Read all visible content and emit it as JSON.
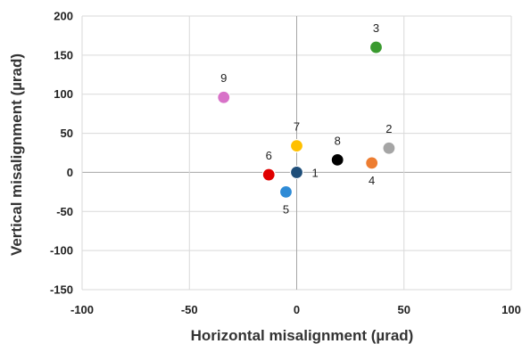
{
  "chart_data": {
    "type": "scatter",
    "xlabel": "Horizontal misalignment  (µrad)",
    "ylabel": "Vertical misalignment  (µrad)",
    "xlim": [
      -100,
      100
    ],
    "ylim": [
      -150,
      200
    ],
    "xticks": [
      -100,
      -50,
      0,
      50,
      100
    ],
    "yticks": [
      -150,
      -100,
      -50,
      0,
      50,
      100,
      150,
      200
    ],
    "xtick_labels": [
      "-100",
      "-50",
      "0",
      "50",
      "100"
    ],
    "ytick_labels": [
      "-150",
      "-100",
      "-50",
      "0",
      "50",
      "100",
      "150",
      "200"
    ],
    "grid": true,
    "points": [
      {
        "label": "1",
        "x": 0,
        "y": 0,
        "color": "#1f4e79",
        "label_pos": "right"
      },
      {
        "label": "2",
        "x": 43,
        "y": 31,
        "color": "#a5a5a5",
        "label_pos": "above"
      },
      {
        "label": "3",
        "x": 37,
        "y": 160,
        "color": "#3a9a2f",
        "label_pos": "above"
      },
      {
        "label": "4",
        "x": 35,
        "y": 12,
        "color": "#ed7d31",
        "label_pos": "below"
      },
      {
        "label": "5",
        "x": -5,
        "y": -25,
        "color": "#2e8bd6",
        "label_pos": "below"
      },
      {
        "label": "6",
        "x": -13,
        "y": -3,
        "color": "#e00000",
        "label_pos": "above"
      },
      {
        "label": "7",
        "x": 0,
        "y": 34,
        "color": "#ffc000",
        "label_pos": "above"
      },
      {
        "label": "8",
        "x": 19,
        "y": 16,
        "color": "#000000",
        "label_pos": "above"
      },
      {
        "label": "9",
        "x": -34,
        "y": 96,
        "color": "#d872c8",
        "label_pos": "above"
      }
    ]
  }
}
